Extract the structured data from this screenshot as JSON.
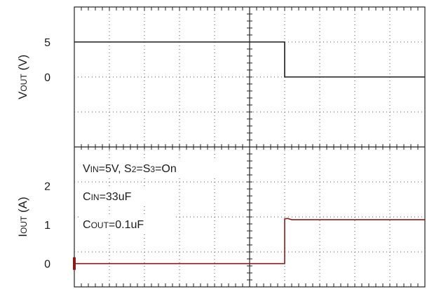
{
  "chart_data": {
    "type": "line",
    "title": "",
    "panels": [
      {
        "id": "vout",
        "ylabel": {
          "main": "V",
          "sub": "OUT",
          "unit": " (V)"
        },
        "ticks": [
          "5",
          "0"
        ],
        "tick_values": [
          5,
          0
        ],
        "ylim": [
          -10,
          10
        ],
        "color": "#1a1a1a",
        "series": {
          "x": [
            0,
            6,
            6,
            10
          ],
          "y": [
            5,
            5,
            0,
            0
          ]
        }
      },
      {
        "id": "iout",
        "ylabel": {
          "main": "I",
          "sub": "OUT",
          "unit": " (A)"
        },
        "ticks": [
          "2",
          "1",
          "0"
        ],
        "tick_values": [
          2,
          1,
          0
        ],
        "ylim": [
          -0.6,
          3
        ],
        "color": "#8b1a1a",
        "series": {
          "x": [
            0,
            6,
            6,
            6.08,
            6.2,
            10
          ],
          "y": [
            0,
            0,
            1.15,
            1.16,
            1.13,
            1.13
          ]
        }
      }
    ],
    "xlim": [
      0,
      10
    ],
    "grid": true,
    "annotations": [
      {
        "parts": [
          {
            "t": "V"
          },
          {
            "t": "IN",
            "sub": true
          },
          {
            "t": "=5V, S"
          },
          {
            "t": "2",
            "sub": true
          },
          {
            "t": "=S"
          },
          {
            "t": "3",
            "sub": true
          },
          {
            "t": "=On"
          }
        ]
      },
      {
        "parts": [
          {
            "t": "C"
          },
          {
            "t": "IN",
            "sub": true
          },
          {
            "t": "=33uF"
          }
        ]
      },
      {
        "parts": [
          {
            "t": "C"
          },
          {
            "t": "OUT",
            "sub": true
          },
          {
            "t": "=0.1uF"
          }
        ]
      }
    ]
  }
}
